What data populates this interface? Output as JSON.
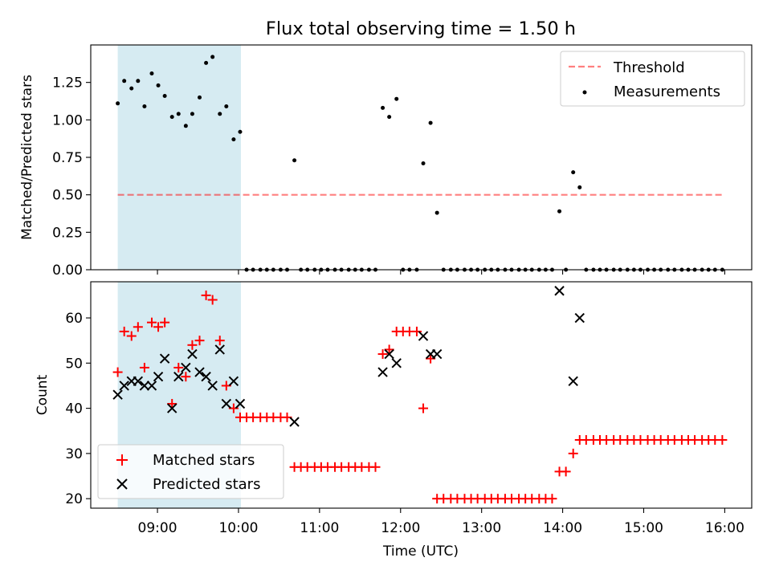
{
  "colors": {
    "background": "#ffffff",
    "shade": "#add8e6",
    "threshold": "#ff0000",
    "measurements": "#000000",
    "matched": "#ff0000",
    "predicted": "#000000"
  },
  "chart_data": [
    {
      "type": "scatter",
      "title": "Flux total observing time = 1.50 h",
      "xlabel": "",
      "ylabel": "Matched/Predicted stars",
      "xlim_hours": [
        8.177,
        16.333
      ],
      "ylim": [
        0,
        1.5
      ],
      "yticks": [
        0,
        0.25,
        0.5,
        0.75,
        1.0,
        1.25
      ],
      "ytick_labels": [
        "0.00",
        "0.25",
        "0.50",
        "0.75",
        "1.00",
        "1.25"
      ],
      "xticks_hours": [
        9,
        10,
        11,
        12,
        13,
        14,
        15,
        16
      ],
      "observing_window_hours": [
        8.51,
        10.03
      ],
      "legend_position": "upper right",
      "threshold": {
        "name": "Threshold",
        "style": "dashed line",
        "value": 0.5,
        "x_range_hours": [
          8.51,
          15.98
        ]
      },
      "series": [
        {
          "name": "Measurements",
          "marker": "dot",
          "x_hours": [
            8.51,
            8.59,
            8.68,
            8.76,
            8.84,
            8.93,
            9.01,
            9.09,
            9.18,
            9.26,
            9.35,
            9.43,
            9.52,
            9.6,
            9.68,
            9.77,
            9.85,
            9.94,
            10.02,
            10.1,
            10.18,
            10.27,
            10.35,
            10.43,
            10.52,
            10.6,
            10.69,
            10.77,
            10.85,
            10.94,
            11.02,
            11.1,
            11.19,
            11.27,
            11.36,
            11.44,
            11.52,
            11.61,
            11.69,
            11.78,
            11.86,
            11.95,
            12.03,
            12.11,
            12.2,
            12.28,
            12.37,
            12.45,
            12.53,
            12.62,
            12.7,
            12.79,
            12.87,
            12.95,
            13.04,
            13.12,
            13.2,
            13.29,
            13.37,
            13.46,
            13.54,
            13.62,
            13.71,
            13.79,
            13.87,
            13.96,
            14.04,
            14.13,
            14.21,
            14.29,
            14.38,
            14.46,
            14.54,
            14.63,
            14.71,
            14.8,
            14.88,
            14.96,
            15.05,
            15.13,
            15.21,
            15.3,
            15.38,
            15.47,
            15.55,
            15.63,
            15.72,
            15.8,
            15.88,
            15.97
          ],
          "y": [
            1.11,
            1.26,
            1.21,
            1.26,
            1.09,
            1.31,
            1.23,
            1.16,
            1.02,
            1.04,
            0.96,
            1.04,
            1.15,
            1.38,
            1.42,
            1.04,
            1.09,
            0.87,
            0.92,
            0.0,
            0.0,
            0.0,
            0.0,
            0.0,
            0.0,
            0.0,
            0.73,
            0.0,
            0.0,
            0.0,
            0.0,
            0.0,
            0.0,
            0.0,
            0.0,
            0.0,
            0.0,
            0.0,
            0.0,
            1.08,
            1.02,
            1.14,
            0.0,
            0.0,
            0.0,
            0.71,
            0.98,
            0.38,
            0.0,
            0.0,
            0.0,
            0.0,
            0.0,
            0.0,
            0.0,
            0.0,
            0.0,
            0.0,
            0.0,
            0.0,
            0.0,
            0.0,
            0.0,
            0.0,
            0.0,
            0.39,
            0.0,
            0.65,
            0.55,
            0.0,
            0.0,
            0.0,
            0.0,
            0.0,
            0.0,
            0.0,
            0.0,
            0.0,
            0.0,
            0.0,
            0.0,
            0.0,
            0.0,
            0.0,
            0.0,
            0.0,
            0.0,
            0.0,
            0.0,
            0.0
          ]
        }
      ]
    },
    {
      "type": "scatter",
      "title": "",
      "xlabel": "Time (UTC)",
      "ylabel": "Count",
      "xlim_hours": [
        8.177,
        16.333
      ],
      "ylim": [
        17.9,
        68.0
      ],
      "yticks": [
        20,
        30,
        40,
        50,
        60
      ],
      "ytick_labels": [
        "20",
        "30",
        "40",
        "50",
        "60"
      ],
      "xticks_hours": [
        9,
        10,
        11,
        12,
        13,
        14,
        15,
        16
      ],
      "xtick_labels": [
        "09:00",
        "10:00",
        "11:00",
        "12:00",
        "13:00",
        "14:00",
        "15:00",
        "16:00"
      ],
      "observing_window_hours": [
        8.51,
        10.03
      ],
      "legend_position": "lower left",
      "series": [
        {
          "name": "Matched stars",
          "marker": "plus",
          "x_hours": [
            8.51,
            8.59,
            8.68,
            8.76,
            8.84,
            8.93,
            9.01,
            9.09,
            9.18,
            9.26,
            9.35,
            9.43,
            9.52,
            9.6,
            9.68,
            9.77,
            9.85,
            9.94,
            10.02,
            10.1,
            10.18,
            10.27,
            10.35,
            10.43,
            10.52,
            10.6,
            10.69,
            10.77,
            10.85,
            10.94,
            11.02,
            11.1,
            11.19,
            11.27,
            11.36,
            11.44,
            11.52,
            11.61,
            11.69,
            11.78,
            11.86,
            11.95,
            12.03,
            12.11,
            12.2,
            12.28,
            12.37,
            12.45,
            12.53,
            12.62,
            12.7,
            12.79,
            12.87,
            12.95,
            13.04,
            13.12,
            13.2,
            13.29,
            13.37,
            13.46,
            13.54,
            13.62,
            13.71,
            13.79,
            13.87,
            13.96,
            14.04,
            14.13,
            14.21,
            14.29,
            14.38,
            14.46,
            14.54,
            14.63,
            14.71,
            14.8,
            14.88,
            14.96,
            15.05,
            15.13,
            15.21,
            15.3,
            15.38,
            15.47,
            15.55,
            15.63,
            15.72,
            15.8,
            15.88,
            15.97
          ],
          "y": [
            48,
            57,
            56,
            58,
            49,
            59,
            58,
            59,
            41,
            49,
            47,
            54,
            55,
            65,
            64,
            55,
            45,
            40,
            38,
            38,
            38,
            38,
            38,
            38,
            38,
            38,
            27,
            27,
            27,
            27,
            27,
            27,
            27,
            27,
            27,
            27,
            27,
            27,
            27,
            52,
            53,
            57,
            57,
            57,
            57,
            40,
            51,
            20,
            20,
            20,
            20,
            20,
            20,
            20,
            20,
            20,
            20,
            20,
            20,
            20,
            20,
            20,
            20,
            20,
            20,
            26,
            26,
            30,
            33,
            33,
            33,
            33,
            33,
            33,
            33,
            33,
            33,
            33,
            33,
            33,
            33,
            33,
            33,
            33,
            33,
            33,
            33,
            33,
            33,
            33
          ]
        },
        {
          "name": "Predicted stars",
          "marker": "x",
          "x_hours": [
            8.51,
            8.59,
            8.68,
            8.76,
            8.84,
            8.93,
            9.01,
            9.09,
            9.18,
            9.26,
            9.35,
            9.43,
            9.52,
            9.6,
            9.68,
            9.77,
            9.85,
            9.94,
            10.02,
            10.69,
            11.78,
            11.86,
            11.95,
            12.28,
            12.37,
            12.45,
            13.96,
            14.13,
            14.21
          ],
          "y": [
            43,
            45,
            46,
            46,
            45,
            45,
            47,
            51,
            40,
            47,
            49,
            52,
            48,
            47,
            45,
            53,
            41,
            46,
            41,
            37,
            48,
            52,
            50,
            56,
            52,
            52,
            66,
            46,
            60
          ]
        }
      ]
    }
  ]
}
